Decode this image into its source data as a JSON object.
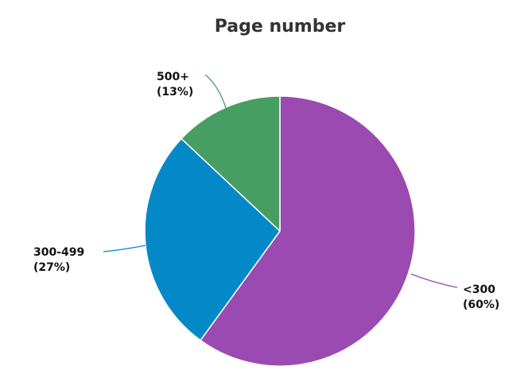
{
  "chart_data": {
    "type": "pie",
    "title": "Page number",
    "slices": [
      {
        "label": "<300",
        "percent_label": "(60%)",
        "value": 60,
        "color": "#9A4AB0"
      },
      {
        "label": "300-499",
        "percent_label": "(27%)",
        "value": 27,
        "color": "#0389C8"
      },
      {
        "label": "500+",
        "percent_label": "(13%)",
        "value": 13,
        "color": "#479E63"
      }
    ],
    "start_angle_deg": 0,
    "direction": "clockwise",
    "slice_border_color": "#ffffff"
  }
}
